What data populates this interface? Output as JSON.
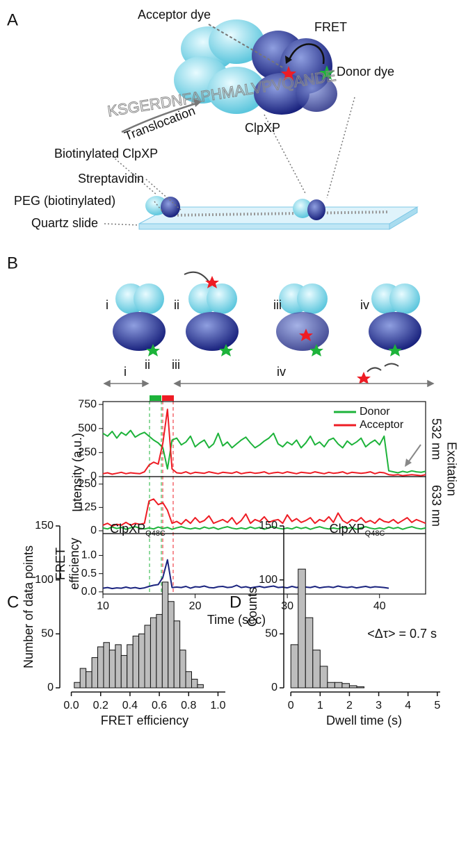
{
  "panel_labels": [
    "A",
    "B",
    "C",
    "D"
  ],
  "diagram": {
    "acceptor_dye": "Acceptor dye",
    "fret": "FRET",
    "donor_dye": "Donor dye",
    "sequence": "KSGERDNFAPHMALVPVQANDE",
    "translocation": "Translocation",
    "clpxp": "ClpXP",
    "biotinylated_clpxp": "Biotinylated ClpXP",
    "streptavidin": "Streptavidin",
    "peg": "PEG (biotinylated)",
    "quartz": "Quartz slide"
  },
  "states": [
    "i",
    "ii",
    "iii",
    "iv"
  ],
  "timeline_states": [
    "i",
    "ii",
    "iii",
    "iv"
  ],
  "intensity_label": "Intensity (a.u.)",
  "excitation": {
    "label": "Excitation",
    "green": "532 nm",
    "red": "633 nm"
  },
  "chart_data": [
    {
      "type": "line",
      "ylim": [
        0,
        780
      ],
      "yticks": [
        0,
        250,
        500,
        750
      ],
      "xlim": [
        10,
        45
      ],
      "legend": "upper right",
      "x": [
        10,
        10.5,
        11,
        11.5,
        12,
        12.5,
        13,
        13.5,
        14,
        14.5,
        15,
        15.5,
        16,
        16.5,
        17,
        17.5,
        18,
        18.5,
        19,
        19.5,
        20,
        20.5,
        21,
        21.5,
        22,
        22.5,
        23,
        23.5,
        24,
        24.5,
        25,
        25.5,
        26,
        26.5,
        27,
        27.5,
        28,
        28.5,
        29,
        29.5,
        30,
        30.5,
        31,
        31.5,
        32,
        32.5,
        33,
        33.5,
        34,
        34.5,
        35,
        35.5,
        36,
        36.5,
        37,
        37.5,
        38,
        38.5,
        39,
        39.5,
        40,
        40.5,
        41,
        41.5,
        42,
        42.5,
        43,
        43.5,
        44,
        44.5,
        45
      ],
      "series": [
        {
          "name": "Donor",
          "color": "#1db33a",
          "values": [
            450,
            420,
            470,
            400,
            460,
            430,
            480,
            410,
            440,
            460,
            420,
            380,
            350,
            300,
            80,
            380,
            400,
            330,
            360,
            420,
            310,
            350,
            380,
            300,
            340,
            450,
            320,
            360,
            300,
            340,
            380,
            410,
            350,
            300,
            330,
            370,
            400,
            450,
            340,
            310,
            360,
            330,
            380,
            300,
            350,
            420,
            330,
            360,
            310,
            380,
            400,
            340,
            300,
            370,
            330,
            360,
            400,
            310,
            350,
            380,
            330,
            420,
            60,
            50,
            40,
            55,
            45,
            60,
            50,
            45,
            55
          ]
        },
        {
          "name": "Acceptor",
          "color": "#ee1c24",
          "values": [
            30,
            40,
            25,
            35,
            45,
            30,
            40,
            35,
            30,
            50,
            120,
            150,
            130,
            350,
            700,
            80,
            40,
            35,
            50,
            30,
            45,
            40,
            35,
            50,
            40,
            30,
            45,
            40,
            35,
            50,
            30,
            40,
            45,
            35,
            40,
            50,
            30,
            40,
            45,
            35,
            50,
            40,
            30,
            45,
            40,
            35,
            50,
            40,
            30,
            45,
            35,
            40,
            50,
            30,
            45,
            40,
            35,
            40,
            50,
            30,
            45,
            40,
            20,
            15,
            20,
            10,
            15,
            20,
            15,
            10,
            20
          ]
        }
      ]
    },
    {
      "type": "line",
      "ylim": [
        -15,
        290
      ],
      "yticks": [
        0,
        125,
        250
      ],
      "xlim": [
        10,
        45
      ],
      "x": [
        10,
        10.5,
        11,
        11.5,
        12,
        12.5,
        13,
        13.5,
        14,
        14.5,
        15,
        15.5,
        16,
        16.5,
        17,
        17.5,
        18,
        18.5,
        19,
        19.5,
        20,
        20.5,
        21,
        21.5,
        22,
        22.5,
        23,
        23.5,
        24,
        24.5,
        25,
        25.5,
        26,
        26.5,
        27,
        27.5,
        28,
        28.5,
        29,
        29.5,
        30,
        30.5,
        31,
        31.5,
        32,
        32.5,
        33,
        33.5,
        34,
        34.5,
        35,
        35.5,
        36,
        36.5,
        37,
        37.5,
        38,
        38.5,
        39,
        39.5,
        40,
        40.5,
        41,
        41.5,
        42,
        42.5,
        43,
        43.5,
        44,
        44.5,
        45
      ],
      "series": [
        {
          "name": "Donor",
          "color": "#1db33a",
          "values": [
            15,
            10,
            20,
            12,
            18,
            8,
            16,
            22,
            14,
            10,
            15,
            10,
            20,
            12,
            18,
            8,
            16,
            22,
            14,
            10,
            15,
            10,
            20,
            12,
            18,
            8,
            16,
            22,
            14,
            10,
            15,
            10,
            20,
            12,
            18,
            8,
            16,
            22,
            14,
            10,
            15,
            10,
            20,
            12,
            18,
            8,
            16,
            22,
            14,
            10,
            15,
            10,
            20,
            12,
            18,
            8,
            16,
            22,
            14,
            10,
            15,
            10,
            20,
            12,
            18,
            8,
            16,
            22,
            14,
            10,
            15
          ]
        },
        {
          "name": "Acceptor",
          "color": "#ee1c24",
          "values": [
            30,
            40,
            25,
            35,
            30,
            45,
            30,
            40,
            35,
            40,
            160,
            170,
            140,
            150,
            110,
            40,
            50,
            35,
            60,
            40,
            70,
            45,
            55,
            80,
            40,
            50,
            60,
            45,
            70,
            35,
            55,
            90,
            40,
            60,
            50,
            75,
            45,
            55,
            60,
            40,
            85,
            50,
            65,
            45,
            55,
            70,
            40,
            60,
            50,
            75,
            45,
            95,
            55,
            40,
            60,
            50,
            70,
            45,
            55,
            40,
            65,
            50,
            45,
            60,
            40,
            55,
            70,
            45,
            60,
            50,
            40
          ]
        }
      ]
    },
    {
      "type": "line",
      "ylim": [
        -0.06,
        1.6
      ],
      "yticks": [
        {
          "value": 0,
          "label": "0.0"
        },
        0.5,
        {
          "value": 1,
          "label": "1.0"
        }
      ],
      "xlim": [
        10,
        45
      ],
      "xticks": [
        10,
        20,
        30,
        40
      ],
      "xlabel": "Time (sec)",
      "ylabel_lines": [
        "FRET",
        "efficiency"
      ],
      "x": [
        10,
        10.5,
        11,
        11.5,
        12,
        12.5,
        13,
        13.5,
        14,
        14.5,
        15,
        15.5,
        16,
        16.5,
        17,
        17.5,
        18,
        18.5,
        19,
        19.5,
        20,
        20.5,
        21,
        21.5,
        22,
        22.5,
        23,
        23.5,
        24,
        24.5,
        25,
        25.5,
        26,
        26.5,
        27,
        27.5,
        28,
        28.5,
        29,
        29.5,
        30,
        30.5,
        31,
        31.5,
        32,
        32.5,
        33,
        33.5,
        34,
        34.5,
        35,
        35.5,
        36,
        36.5,
        37,
        37.5,
        38,
        38.5,
        39,
        39.5,
        40,
        40.5,
        41,
        41.5,
        42,
        42.5,
        43,
        43.5,
        44,
        44.5,
        45
      ],
      "series": [
        {
          "name": "FRET",
          "color": "#1a237e",
          "values": [
            0.1,
            0.12,
            0.09,
            0.11,
            0.1,
            0.13,
            0.1,
            0.12,
            0.09,
            0.11,
            0.15,
            0.18,
            0.2,
            0.4,
            0.88,
            0.12,
            0.13,
            0.12,
            0.15,
            0.1,
            0.14,
            0.13,
            0.16,
            0.12,
            0.11,
            0.14,
            0.15,
            0.12,
            0.13,
            0.18,
            0.12,
            0.14,
            0.11,
            0.13,
            0.15,
            0.12,
            0.14,
            0.16,
            0.12,
            0.13,
            0.11,
            0.15,
            0.12,
            0.14,
            0.13,
            0.12,
            0.15,
            0.11,
            0.13,
            0.14,
            0.12,
            0.16,
            0.13,
            0.12,
            0.14,
            0.11,
            0.13,
            0.15,
            0.12,
            0.14,
            0.13,
            0.12,
            0.1,
            null,
            null,
            null,
            null,
            null,
            null,
            null,
            null
          ]
        }
      ]
    },
    {
      "type": "histogram",
      "title": "ClpXP",
      "title_subscript": "Q48C",
      "xlabel": "FRET efficiency",
      "ylabel": "Number of data points",
      "color": "#bdbdbd",
      "bins": [
        0.02,
        0.06,
        0.1,
        0.14,
        0.18,
        0.22,
        0.26,
        0.3,
        0.34,
        0.38,
        0.42,
        0.46,
        0.5,
        0.54,
        0.58,
        0.62,
        0.66,
        0.7,
        0.74,
        0.78,
        0.82,
        0.86,
        0.9
      ],
      "counts": [
        5,
        18,
        15,
        28,
        38,
        42,
        35,
        40,
        30,
        40,
        48,
        50,
        58,
        65,
        68,
        98,
        80,
        62,
        35,
        15,
        8,
        3
      ],
      "xlim": [
        -0.05,
        1.05
      ],
      "xticks": [
        {
          "value": 0,
          "label": "0.0"
        },
        0.2,
        0.4,
        0.6,
        0.8,
        {
          "value": 1,
          "label": "1.0"
        }
      ],
      "ylim": [
        0,
        150
      ],
      "yticks": [
        0,
        50,
        100,
        150
      ]
    },
    {
      "type": "histogram",
      "title": "ClpXP",
      "title_subscript": "Q48C",
      "xlabel": "Dwell time (s)",
      "ylabel": "Counts",
      "annotation": "<Δτ> = 0.7 s",
      "color": "#bdbdbd",
      "bins": [
        0,
        0.25,
        0.5,
        0.75,
        1,
        1.25,
        1.5,
        1.75,
        2,
        2.25,
        2.5
      ],
      "counts": [
        40,
        110,
        65,
        35,
        20,
        5,
        5,
        4,
        2,
        1
      ],
      "xlim": [
        -0.1,
        5.1
      ],
      "xticks": [
        0,
        1,
        2,
        3,
        4,
        5
      ],
      "ylim": [
        0,
        150
      ],
      "yticks": [
        0,
        50,
        100,
        150
      ]
    }
  ]
}
